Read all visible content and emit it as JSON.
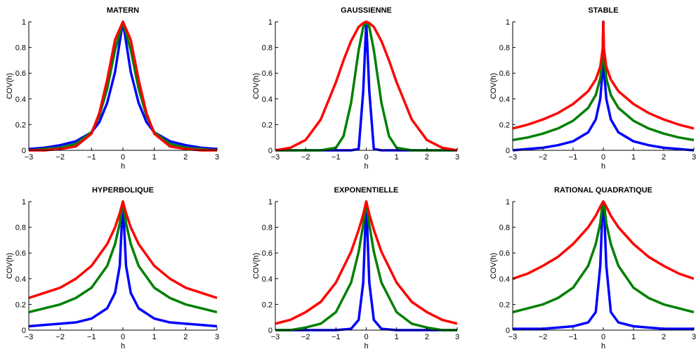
{
  "figure": {
    "colors": {
      "series_1": "#0000ff",
      "series_2": "#008000",
      "series_3": "#ff0000"
    }
  },
  "chart_data": [
    {
      "type": "line",
      "title": "MATERN",
      "xlabel": "h",
      "ylabel": "COV(h)",
      "xlim": [
        -3,
        3
      ],
      "ylim": [
        0,
        1
      ],
      "xticks": [
        "−3",
        "−2",
        "−1",
        "0",
        "1",
        "2",
        "3"
      ],
      "yticks": [
        "0",
        "0.2",
        "0.4",
        "0.6",
        "0.8",
        "1"
      ],
      "x": [
        -3,
        -2.5,
        -2,
        -1.5,
        -1,
        -0.75,
        -0.5,
        -0.25,
        0,
        0.25,
        0.5,
        0.75,
        1,
        1.5,
        2,
        2.5,
        3
      ],
      "series": [
        {
          "color": "#0000ff",
          "values": [
            0.01,
            0.02,
            0.04,
            0.07,
            0.14,
            0.22,
            0.37,
            0.61,
            1,
            0.61,
            0.37,
            0.22,
            0.14,
            0.07,
            0.04,
            0.02,
            0.01
          ]
        },
        {
          "color": "#008000",
          "values": [
            0.0,
            0.01,
            0.02,
            0.05,
            0.14,
            0.27,
            0.48,
            0.78,
            1,
            0.78,
            0.48,
            0.27,
            0.14,
            0.05,
            0.02,
            0.01,
            0.0
          ]
        },
        {
          "color": "#ff0000",
          "values": [
            0.0,
            0.0,
            0.01,
            0.03,
            0.13,
            0.29,
            0.55,
            0.86,
            1,
            0.86,
            0.55,
            0.29,
            0.13,
            0.03,
            0.01,
            0.0,
            0.0
          ]
        }
      ]
    },
    {
      "type": "line",
      "title": "GAUSSIENNE",
      "xlabel": "h",
      "ylabel": "COV(h)",
      "xlim": [
        -3,
        3
      ],
      "ylim": [
        0,
        1
      ],
      "xticks": [
        "−3",
        "−2",
        "−1",
        "0",
        "1",
        "2",
        "3"
      ],
      "yticks": [
        "0",
        "0.2",
        "0.4",
        "0.6",
        "0.8",
        "1"
      ],
      "x": [
        -3,
        -2.5,
        -2,
        -1.5,
        -1,
        -0.75,
        -0.5,
        -0.25,
        -0.1,
        0,
        0.1,
        0.25,
        0.5,
        0.75,
        1,
        1.5,
        2,
        2.5,
        3
      ],
      "series": [
        {
          "color": "#0000ff",
          "values": [
            0,
            0,
            0,
            0,
            0,
            0,
            0,
            0.01,
            0.46,
            1,
            0.46,
            0.01,
            0,
            0,
            0,
            0,
            0,
            0,
            0
          ]
        },
        {
          "color": "#008000",
          "values": [
            0,
            0,
            0,
            0,
            0.02,
            0.11,
            0.37,
            0.78,
            0.96,
            1,
            0.96,
            0.78,
            0.37,
            0.11,
            0.02,
            0,
            0,
            0,
            0
          ]
        },
        {
          "color": "#ff0000",
          "values": [
            0,
            0.02,
            0.08,
            0.24,
            0.53,
            0.7,
            0.85,
            0.96,
            0.99,
            1,
            0.99,
            0.96,
            0.85,
            0.7,
            0.53,
            0.24,
            0.08,
            0.02,
            0
          ]
        }
      ]
    },
    {
      "type": "line",
      "title": "STABLE",
      "xlabel": "h",
      "ylabel": "COV(h)",
      "xlim": [
        -3,
        3
      ],
      "ylim": [
        0,
        1
      ],
      "xticks": [
        "−3",
        "−2",
        "−1",
        "0",
        "1",
        "2",
        "3"
      ],
      "yticks": [
        "0",
        "0.2",
        "0.4",
        "0.6",
        "0.8",
        "1"
      ],
      "x": [
        -3,
        -2.5,
        -2,
        -1.5,
        -1,
        -0.5,
        -0.25,
        -0.1,
        -0.02,
        0,
        0.02,
        0.1,
        0.25,
        0.5,
        1,
        1.5,
        2,
        2.5,
        3
      ],
      "series": [
        {
          "color": "#0000ff",
          "values": [
            0.0,
            0.01,
            0.02,
            0.04,
            0.07,
            0.14,
            0.24,
            0.4,
            0.63,
            1,
            0.63,
            0.4,
            0.24,
            0.14,
            0.07,
            0.04,
            0.02,
            0.01,
            0.0
          ]
        },
        {
          "color": "#008000",
          "values": [
            0.08,
            0.1,
            0.13,
            0.17,
            0.23,
            0.33,
            0.43,
            0.56,
            0.72,
            1,
            0.72,
            0.56,
            0.43,
            0.33,
            0.23,
            0.17,
            0.13,
            0.1,
            0.08
          ]
        },
        {
          "color": "#ff0000",
          "values": [
            0.17,
            0.2,
            0.24,
            0.29,
            0.36,
            0.46,
            0.55,
            0.65,
            0.79,
            1,
            0.79,
            0.65,
            0.55,
            0.46,
            0.36,
            0.29,
            0.24,
            0.2,
            0.17
          ]
        }
      ]
    },
    {
      "type": "line",
      "title": "HYPERBOLIQUE",
      "xlabel": "h",
      "ylabel": "COV(h)",
      "xlim": [
        -3,
        3
      ],
      "ylim": [
        0,
        1
      ],
      "xticks": [
        "−3",
        "−2",
        "−1",
        "0",
        "1",
        "2",
        "3"
      ],
      "yticks": [
        "0",
        "0.2",
        "0.4",
        "0.6",
        "0.8",
        "1"
      ],
      "x": [
        -3,
        -2.5,
        -2,
        -1.5,
        -1,
        -0.5,
        -0.25,
        -0.1,
        0,
        0.1,
        0.25,
        0.5,
        1,
        1.5,
        2,
        2.5,
        3
      ],
      "series": [
        {
          "color": "#0000ff",
          "values": [
            0.03,
            0.04,
            0.05,
            0.06,
            0.09,
            0.17,
            0.29,
            0.5,
            1,
            0.5,
            0.29,
            0.17,
            0.09,
            0.06,
            0.05,
            0.04,
            0.03
          ]
        },
        {
          "color": "#008000",
          "values": [
            0.14,
            0.17,
            0.2,
            0.25,
            0.33,
            0.5,
            0.67,
            0.83,
            1,
            0.83,
            0.67,
            0.5,
            0.33,
            0.25,
            0.2,
            0.17,
            0.14
          ]
        },
        {
          "color": "#ff0000",
          "values": [
            0.25,
            0.29,
            0.33,
            0.4,
            0.5,
            0.67,
            0.8,
            0.91,
            1,
            0.91,
            0.8,
            0.67,
            0.5,
            0.4,
            0.33,
            0.29,
            0.25
          ]
        }
      ]
    },
    {
      "type": "line",
      "title": "EXPONENTIELLE",
      "xlabel": "h",
      "ylabel": "COV(h)",
      "xlim": [
        -3,
        3
      ],
      "ylim": [
        0,
        1
      ],
      "xticks": [
        "−3",
        "−2",
        "−1",
        "0",
        "1",
        "2",
        "3"
      ],
      "yticks": [
        "0",
        "0.2",
        "0.4",
        "0.6",
        "0.8",
        "1"
      ],
      "x": [
        -3,
        -2.5,
        -2,
        -1.5,
        -1,
        -0.5,
        -0.25,
        -0.1,
        0,
        0.1,
        0.25,
        0.5,
        1,
        1.5,
        2,
        2.5,
        3
      ],
      "series": [
        {
          "color": "#0000ff",
          "values": [
            0,
            0,
            0,
            0,
            0,
            0.01,
            0.08,
            0.37,
            1,
            0.37,
            0.08,
            0.01,
            0,
            0,
            0,
            0,
            0
          ]
        },
        {
          "color": "#008000",
          "values": [
            0.0,
            0.0,
            0.02,
            0.05,
            0.14,
            0.37,
            0.61,
            0.82,
            1,
            0.82,
            0.61,
            0.37,
            0.14,
            0.05,
            0.02,
            0.0,
            0.0
          ]
        },
        {
          "color": "#ff0000",
          "values": [
            0.05,
            0.08,
            0.14,
            0.22,
            0.37,
            0.61,
            0.78,
            0.9,
            1,
            0.9,
            0.78,
            0.61,
            0.37,
            0.22,
            0.14,
            0.08,
            0.05
          ]
        }
      ]
    },
    {
      "type": "line",
      "title": "RATIONAL QUADRATIQUE",
      "xlabel": "h",
      "ylabel": "COV(h)",
      "xlim": [
        -3,
        3
      ],
      "ylim": [
        0,
        1
      ],
      "xticks": [
        "−3",
        "−2",
        "−1",
        "0",
        "1",
        "2",
        "3"
      ],
      "yticks": [
        "0",
        "0.2",
        "0.4",
        "0.6",
        "0.8",
        "1"
      ],
      "x": [
        -3,
        -2.5,
        -2,
        -1.5,
        -1,
        -0.5,
        -0.25,
        -0.1,
        -0.03,
        0,
        0.03,
        0.1,
        0.25,
        0.5,
        1,
        1.5,
        2,
        2.5,
        3
      ],
      "series": [
        {
          "color": "#0000ff",
          "values": [
            0.01,
            0.01,
            0.01,
            0.02,
            0.03,
            0.06,
            0.14,
            0.5,
            0.92,
            1,
            0.92,
            0.5,
            0.14,
            0.06,
            0.03,
            0.02,
            0.01,
            0.01,
            0.01
          ]
        },
        {
          "color": "#008000",
          "values": [
            0.14,
            0.17,
            0.2,
            0.25,
            0.33,
            0.5,
            0.67,
            0.83,
            0.98,
            1,
            0.98,
            0.83,
            0.67,
            0.5,
            0.33,
            0.25,
            0.2,
            0.17,
            0.14
          ]
        },
        {
          "color": "#ff0000",
          "values": [
            0.4,
            0.44,
            0.5,
            0.57,
            0.67,
            0.8,
            0.89,
            0.96,
            0.99,
            1,
            0.99,
            0.96,
            0.89,
            0.8,
            0.67,
            0.57,
            0.5,
            0.44,
            0.4
          ]
        }
      ]
    }
  ]
}
